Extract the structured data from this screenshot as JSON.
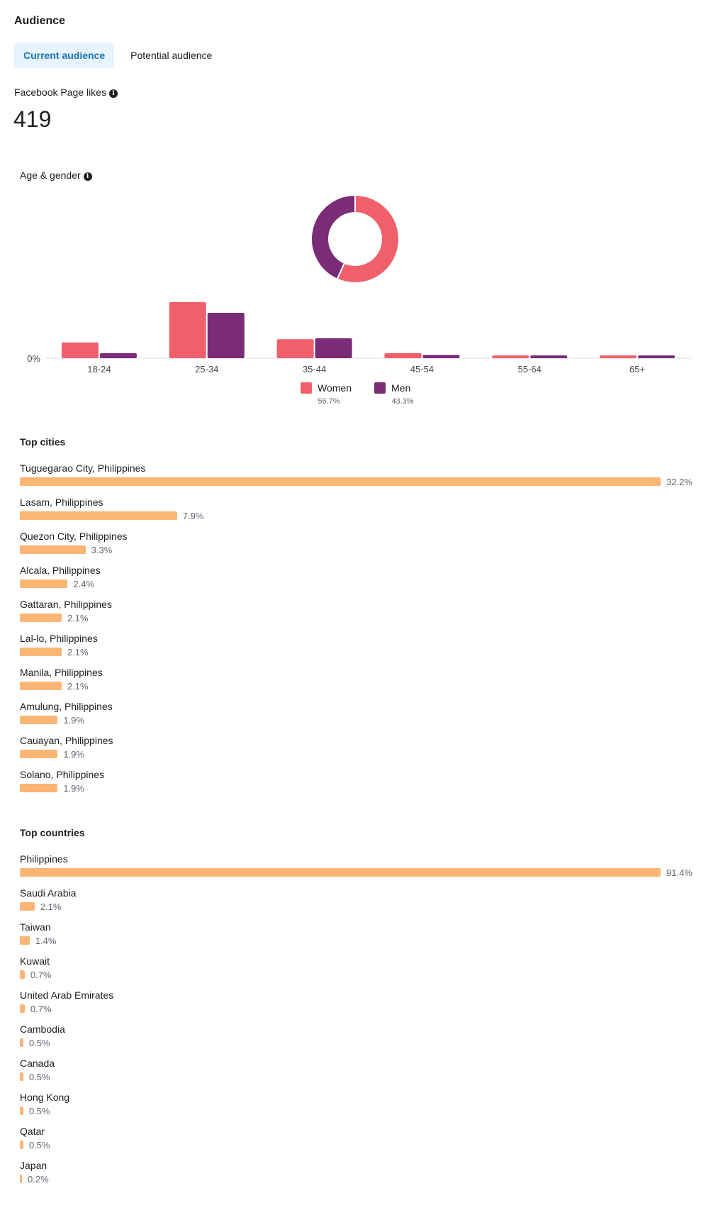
{
  "header": {
    "title": "Audience"
  },
  "tabs": [
    {
      "label": "Current audience",
      "active": true
    },
    {
      "label": "Potential audience",
      "active": false
    }
  ],
  "page_likes": {
    "label": "Facebook Page likes",
    "value": "419"
  },
  "age_gender": {
    "label": "Age & gender"
  },
  "colors": {
    "women": "#f0606b",
    "men": "#7a2c77",
    "bar": "#fbb574"
  },
  "chart_data": [
    {
      "type": "pie",
      "title": "",
      "donut": true,
      "labels": [
        "Women",
        "Men"
      ],
      "values": [
        56.7,
        43.3
      ],
      "value_labels": [
        "56.7%",
        "43.3%"
      ]
    },
    {
      "type": "bar",
      "title": "Age & gender",
      "categories": [
        "18-24",
        "25-34",
        "35-44",
        "45-54",
        "55-64",
        "65+"
      ],
      "series": [
        {
          "name": "Women",
          "values": [
            8.1,
            28.9,
            9.8,
            2.6,
            1.4,
            1.4
          ]
        },
        {
          "name": "Men",
          "values": [
            2.6,
            23.4,
            10.3,
            1.7,
            1.4,
            1.4
          ]
        }
      ],
      "ylabel": "",
      "xlabel": "",
      "ytick_label": "0%",
      "ylim": [
        0,
        30
      ],
      "legend": "bottom"
    },
    {
      "type": "bar",
      "orientation": "horizontal",
      "title": "Top cities",
      "categories": [
        "Tuguegarao City, Philippines",
        "Lasam, Philippines",
        "Quezon City, Philippines",
        "Alcala, Philippines",
        "Gattaran, Philippines",
        "Lal-lo, Philippines",
        "Manila, Philippines",
        "Amulung, Philippines",
        "Cauayan, Philippines",
        "Solano, Philippines"
      ],
      "values": [
        32.2,
        7.9,
        3.3,
        2.4,
        2.1,
        2.1,
        2.1,
        1.9,
        1.9,
        1.9
      ],
      "value_labels": [
        "32.2%",
        "7.9%",
        "3.3%",
        "2.4%",
        "2.1%",
        "2.1%",
        "2.1%",
        "1.9%",
        "1.9%",
        "1.9%"
      ]
    },
    {
      "type": "bar",
      "orientation": "horizontal",
      "title": "Top countries",
      "categories": [
        "Philippines",
        "Saudi Arabia",
        "Taiwan",
        "Kuwait",
        "United Arab Emirates",
        "Cambodia",
        "Canada",
        "Hong Kong",
        "Qatar",
        "Japan"
      ],
      "values": [
        91.4,
        2.1,
        1.4,
        0.7,
        0.7,
        0.5,
        0.5,
        0.5,
        0.5,
        0.2
      ],
      "value_labels": [
        "91.4%",
        "2.1%",
        "1.4%",
        "0.7%",
        "0.7%",
        "0.5%",
        "0.5%",
        "0.5%",
        "0.5%",
        "0.2%"
      ]
    }
  ]
}
